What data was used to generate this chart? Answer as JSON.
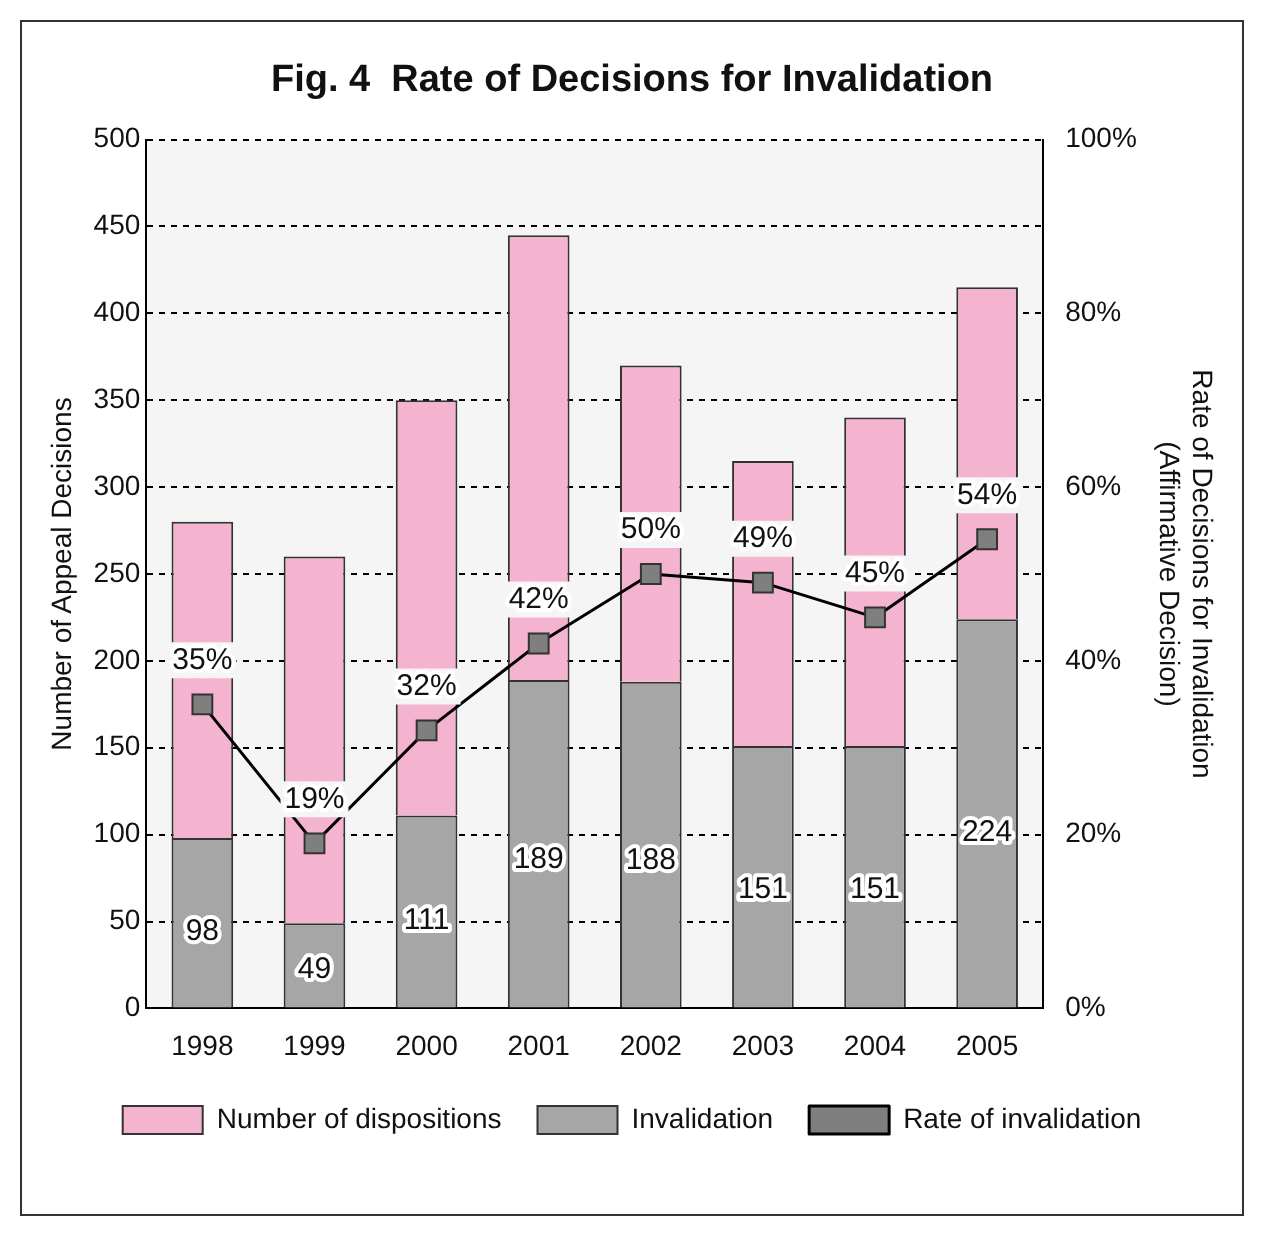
{
  "chart_data": {
    "type": "bar",
    "title": "Fig. 4  Rate of Decisions for Invalidation",
    "ylabel": "Number of Appeal Decisions",
    "y2label": "Rate of Decisions for Invalidation\n(Affirmative Decision)",
    "categories": [
      "1998",
      "1999",
      "2000",
      "2001",
      "2002",
      "2003",
      "2004",
      "2005"
    ],
    "stacked": true,
    "series": [
      {
        "name": "Invalidation",
        "color": "#a6a6a6",
        "values": [
          98,
          49,
          111,
          189,
          188,
          151,
          151,
          224
        ],
        "value_labels": [
          "98",
          "49",
          "111",
          "189",
          "188",
          "151",
          "151",
          "224"
        ]
      },
      {
        "name": "Number of dispositions",
        "color": "#f4b3cf",
        "values": [
          182,
          211,
          239,
          256,
          182,
          164,
          189,
          191
        ]
      },
      {
        "name": "Rate of invalidation",
        "type": "line",
        "axis": "y2",
        "color": "#000000",
        "values": [
          35,
          19,
          32,
          42,
          50,
          49,
          45,
          54
        ],
        "value_labels": [
          "35%",
          "19%",
          "32%",
          "42%",
          "50%",
          "49%",
          "45%",
          "54%"
        ]
      }
    ],
    "ylim": [
      0,
      500
    ],
    "yticks": [
      0,
      50,
      100,
      150,
      200,
      250,
      300,
      350,
      400,
      450,
      500
    ],
    "y2lim": [
      0,
      100
    ],
    "y2ticks": [
      {
        "value": 0,
        "label": "0%"
      },
      {
        "value": 20,
        "label": "20%"
      },
      {
        "value": 40,
        "label": "40%"
      },
      {
        "value": 60,
        "label": "60%"
      },
      {
        "value": 80,
        "label": "80%"
      },
      {
        "value": 100,
        "label": "100%"
      }
    ],
    "grid": "y",
    "legend": "bottom",
    "marker": "square",
    "line_style": "solid"
  }
}
